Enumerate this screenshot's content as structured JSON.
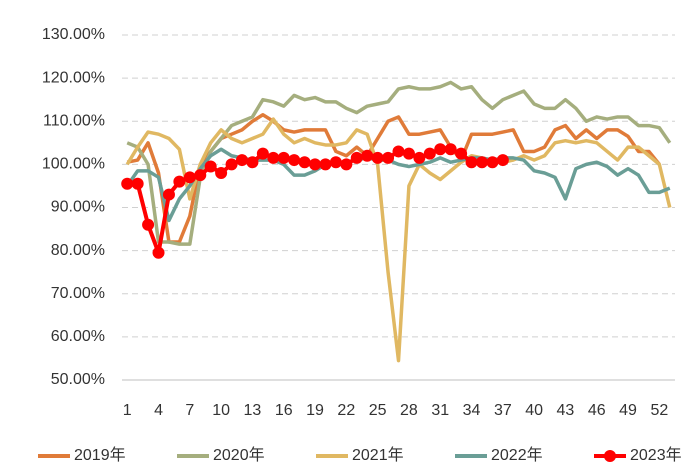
{
  "chart_data": {
    "type": "line",
    "x": [
      1,
      2,
      3,
      4,
      5,
      6,
      7,
      8,
      9,
      10,
      11,
      12,
      13,
      14,
      15,
      16,
      17,
      18,
      19,
      20,
      21,
      22,
      23,
      24,
      25,
      26,
      27,
      28,
      29,
      30,
      31,
      32,
      33,
      34,
      35,
      36,
      37,
      38,
      39,
      40,
      41,
      42,
      43,
      44,
      45,
      46,
      47,
      48,
      49,
      50,
      51,
      52,
      53
    ],
    "xlim": [
      0.5,
      53.5
    ],
    "xticks": [
      1,
      4,
      7,
      10,
      13,
      16,
      19,
      22,
      25,
      28,
      31,
      34,
      37,
      40,
      43,
      46,
      49,
      52
    ],
    "ylim": [
      50,
      130
    ],
    "yticks": [
      {
        "value": 50,
        "label": "50.00%"
      },
      {
        "value": 60,
        "label": "60.00%"
      },
      {
        "value": 70,
        "label": "70.00%"
      },
      {
        "value": 80,
        "label": "80.00%"
      },
      {
        "value": 90,
        "label": "90.00%"
      },
      {
        "value": 100,
        "label": "100.00%"
      },
      {
        "value": 110,
        "label": "110.00%"
      },
      {
        "value": 120,
        "label": "120.00%"
      },
      {
        "value": 130,
        "label": "130.00%"
      }
    ],
    "grid": true,
    "legend": "bottom",
    "series": [
      {
        "name": "2019年",
        "color": "#e07b39",
        "marker": false,
        "values": [
          100.5,
          101,
          105,
          98,
          82,
          82,
          88,
          100,
          103,
          106,
          107,
          108,
          110,
          111.5,
          110,
          108,
          107.5,
          108,
          108,
          108,
          103,
          102,
          104,
          102,
          106,
          110,
          111,
          107,
          107,
          107.5,
          108,
          104,
          101,
          107,
          107,
          107,
          107.5,
          108,
          103,
          103,
          104,
          108,
          109,
          106,
          108,
          106,
          108,
          108,
          106.5,
          103,
          103,
          100,
          null
        ]
      },
      {
        "name": "2020年",
        "color": "#a5ae7e",
        "marker": false,
        "values": [
          105,
          104,
          100,
          82,
          82,
          81.5,
          81.5,
          97,
          103,
          106,
          109,
          110,
          111,
          115,
          114.5,
          113.5,
          116,
          115,
          115.5,
          114.5,
          114.5,
          113,
          112,
          113.5,
          114,
          114.5,
          117.5,
          118,
          117.5,
          117.5,
          118,
          119,
          117.5,
          118,
          115,
          113,
          115,
          116,
          117,
          114,
          113,
          113,
          115,
          113,
          110,
          111,
          110.5,
          111,
          111,
          109,
          109,
          108.5,
          105
        ]
      },
      {
        "name": "2021年",
        "color": "#e0b862",
        "marker": false,
        "values": [
          100,
          104,
          107.5,
          107,
          106,
          103.5,
          92,
          100,
          105,
          108,
          106,
          105,
          106,
          107,
          110.5,
          107,
          105,
          106,
          105,
          104.5,
          104.5,
          105,
          108,
          107,
          100,
          75,
          54.5,
          95,
          100,
          98,
          96.5,
          98.5,
          100.5,
          102,
          101.5,
          101,
          100.5,
          101,
          102,
          101,
          102,
          105,
          105.5,
          105,
          105.5,
          105,
          103,
          101,
          104,
          104,
          102,
          100,
          90
        ]
      },
      {
        "name": "2022年",
        "color": "#6a9e96",
        "marker": false,
        "values": [
          95,
          98.5,
          98.5,
          97,
          87,
          92,
          95,
          99,
          102,
          103.5,
          102,
          101.5,
          101,
          101,
          101,
          100,
          97.5,
          97.5,
          98.5,
          100,
          100.5,
          100.5,
          101,
          101.5,
          101,
          101,
          100,
          99.5,
          100,
          100.5,
          101.5,
          100.5,
          101,
          101.5,
          101.5,
          101,
          101.5,
          101.5,
          101,
          98.5,
          98,
          97,
          92,
          99,
          100,
          100.5,
          99.5,
          97.5,
          99,
          97.5,
          93.5,
          93.5,
          94.5
        ]
      },
      {
        "name": "2023年",
        "color": "#ff0000",
        "marker": true,
        "values": [
          95.5,
          95.5,
          86,
          79.5,
          93,
          96,
          97,
          97.5,
          99.5,
          98,
          100,
          101,
          100.5,
          102.5,
          101.5,
          101.5,
          101,
          100.5,
          100,
          100,
          100.5,
          100,
          101.5,
          102,
          101.5,
          101.5,
          103,
          102.5,
          101.5,
          102.5,
          103.5,
          103.5,
          102.5,
          100.5,
          100.5,
          100.5,
          101,
          null,
          null,
          null,
          null,
          null,
          null,
          null,
          null,
          null,
          null,
          null,
          null,
          null,
          null,
          null,
          null
        ]
      }
    ]
  }
}
